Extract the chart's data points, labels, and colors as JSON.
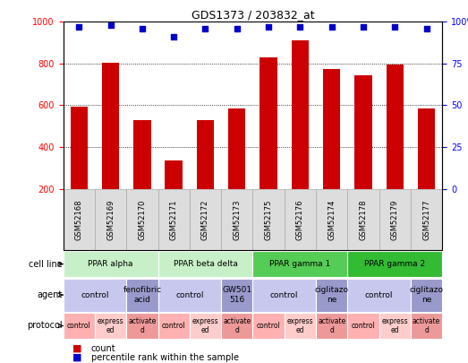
{
  "title": "GDS1373 / 203832_at",
  "samples": [
    "GSM52168",
    "GSM52169",
    "GSM52170",
    "GSM52171",
    "GSM52172",
    "GSM52173",
    "GSM52175",
    "GSM52176",
    "GSM52174",
    "GSM52178",
    "GSM52179",
    "GSM52177"
  ],
  "counts": [
    595,
    805,
    530,
    335,
    530,
    585,
    830,
    910,
    775,
    745,
    795,
    585
  ],
  "percentiles": [
    97,
    98,
    96,
    91,
    96,
    96,
    97,
    97,
    97,
    97,
    97,
    96
  ],
  "ylim_left": [
    200,
    1000
  ],
  "ylim_right": [
    0,
    100
  ],
  "yticks_left": [
    200,
    400,
    600,
    800,
    1000
  ],
  "yticks_right": [
    0,
    25,
    50,
    75,
    100
  ],
  "bar_color": "#cc0000",
  "dot_color": "#0000cc",
  "cell_line_groups": [
    {
      "label": "PPAR alpha",
      "start": 0,
      "end": 3,
      "color": "#c8f0c8"
    },
    {
      "label": "PPAR beta delta",
      "start": 3,
      "end": 6,
      "color": "#c8f0c8"
    },
    {
      "label": "PPAR gamma 1",
      "start": 6,
      "end": 9,
      "color": "#55cc55"
    },
    {
      "label": "PPAR gamma 2",
      "start": 9,
      "end": 12,
      "color": "#33bb33"
    }
  ],
  "agent_groups": [
    {
      "label": "control",
      "start": 0,
      "end": 2,
      "color": "#c8c8ee"
    },
    {
      "label": "fenofibric\nacid",
      "start": 2,
      "end": 3,
      "color": "#9999cc"
    },
    {
      "label": "control",
      "start": 3,
      "end": 5,
      "color": "#c8c8ee"
    },
    {
      "label": "GW501\n516",
      "start": 5,
      "end": 6,
      "color": "#9999cc"
    },
    {
      "label": "control",
      "start": 6,
      "end": 8,
      "color": "#c8c8ee"
    },
    {
      "label": "ciglitazo\nne",
      "start": 8,
      "end": 9,
      "color": "#9999cc"
    },
    {
      "label": "control",
      "start": 9,
      "end": 11,
      "color": "#c8c8ee"
    },
    {
      "label": "ciglitazo\nne",
      "start": 11,
      "end": 12,
      "color": "#9999cc"
    }
  ],
  "protocol_groups": [
    {
      "label": "control",
      "start": 0,
      "end": 1,
      "color": "#ffb0b0"
    },
    {
      "label": "express\ned",
      "start": 1,
      "end": 2,
      "color": "#ffcccc"
    },
    {
      "label": "activate\nd",
      "start": 2,
      "end": 3,
      "color": "#ee9999"
    },
    {
      "label": "control",
      "start": 3,
      "end": 4,
      "color": "#ffb0b0"
    },
    {
      "label": "express\ned",
      "start": 4,
      "end": 5,
      "color": "#ffcccc"
    },
    {
      "label": "activate\nd",
      "start": 5,
      "end": 6,
      "color": "#ee9999"
    },
    {
      "label": "control",
      "start": 6,
      "end": 7,
      "color": "#ffb0b0"
    },
    {
      "label": "express\ned",
      "start": 7,
      "end": 8,
      "color": "#ffcccc"
    },
    {
      "label": "activate\nd",
      "start": 8,
      "end": 9,
      "color": "#ee9999"
    },
    {
      "label": "control",
      "start": 9,
      "end": 10,
      "color": "#ffb0b0"
    },
    {
      "label": "express\ned",
      "start": 10,
      "end": 11,
      "color": "#ffcccc"
    },
    {
      "label": "activate\nd",
      "start": 11,
      "end": 12,
      "color": "#ee9999"
    }
  ],
  "tick_bg_color": "#dddddd",
  "tick_border_color": "#aaaaaa",
  "label_fontsize": 7,
  "tick_fontsize": 6,
  "row_label_fontsize": 7,
  "annotation_fontsize": 6.5,
  "protocol_fontsize": 5.5
}
